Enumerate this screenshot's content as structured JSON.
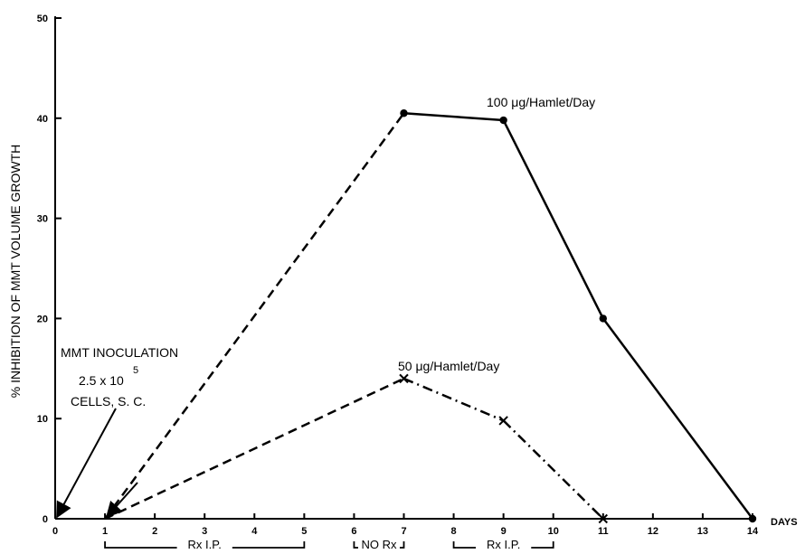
{
  "chart_data": {
    "type": "line",
    "xlabel": "DAYS",
    "ylabel": "% INHIBITION OF MMT VOLUME GROWTH",
    "xlim": [
      0,
      14
    ],
    "ylim": [
      0,
      50
    ],
    "x_ticks": [
      0,
      1,
      2,
      3,
      4,
      5,
      6,
      7,
      8,
      9,
      10,
      11,
      12,
      13,
      14
    ],
    "y_ticks": [
      0,
      10,
      20,
      30,
      40,
      50
    ],
    "series": [
      {
        "name": "100 μg/Hamlet/Day",
        "points": [
          {
            "x": 1,
            "y": 0,
            "marker": "none"
          },
          {
            "x": 7,
            "y": 40.5,
            "marker": "dot"
          },
          {
            "x": 9,
            "y": 39.8,
            "marker": "dot"
          },
          {
            "x": 11,
            "y": 20,
            "marker": "dot"
          },
          {
            "x": 14,
            "y": 0,
            "marker": "dot"
          }
        ],
        "segment_styles": [
          "dashed",
          "solid",
          "solid",
          "solid"
        ]
      },
      {
        "name": "50 μg/Hamlet/Day",
        "points": [
          {
            "x": 1,
            "y": 0,
            "marker": "none"
          },
          {
            "x": 7,
            "y": 14,
            "marker": "x"
          },
          {
            "x": 9,
            "y": 9.8,
            "marker": "x"
          },
          {
            "x": 11,
            "y": 0,
            "marker": "x"
          }
        ],
        "segment_styles": [
          "dashed",
          "dashdot",
          "dashdot"
        ]
      }
    ],
    "annotations": {
      "inoculation_line1": "MMT INOCULATION",
      "inoculation_base": "2.5 x 10",
      "inoculation_exp": "5",
      "inoculation_line3": "CELLS, S. C.",
      "inoculation_arrow_to": {
        "x": 0,
        "y": 0
      },
      "start_arrow_to": {
        "x": 1,
        "y": 0
      }
    },
    "treatment_periods": [
      {
        "label": "Rx I.P.",
        "start": 1,
        "end": 5
      },
      {
        "label": "NO Rx",
        "start": 6,
        "end": 7
      },
      {
        "label": "Rx I.P.",
        "start": 8,
        "end": 10
      }
    ]
  }
}
